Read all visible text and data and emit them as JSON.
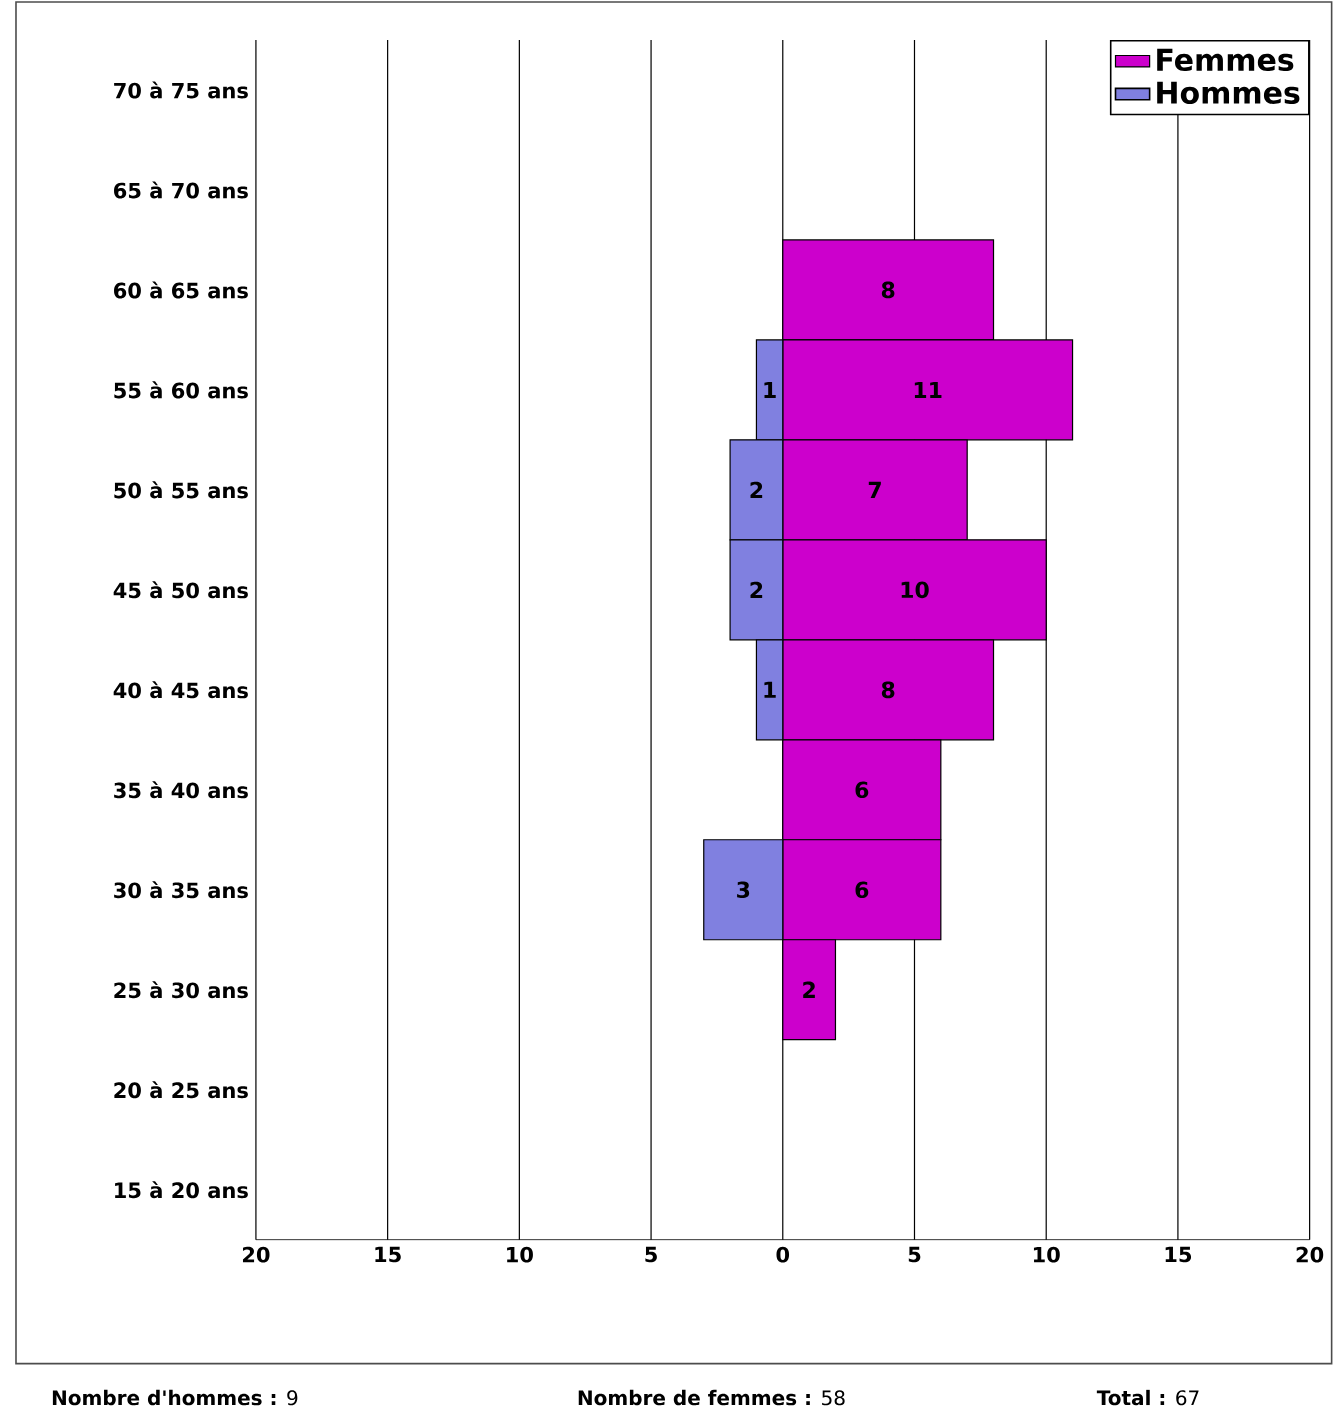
{
  "chart_data": {
    "type": "bar",
    "orientation": "horizontal",
    "categories": [
      "70 à 75 ans",
      "65 à 70 ans",
      "60 à 65 ans",
      "55 à 60 ans",
      "50 à 55 ans",
      "45 à 50 ans",
      "40 à 45 ans",
      "35 à 40 ans",
      "30 à 35 ans",
      "25 à 30 ans",
      "20 à 25 ans",
      "15 à 20 ans"
    ],
    "series": [
      {
        "name": "Femmes",
        "color": "#cc00cc",
        "values": [
          null,
          null,
          8,
          11,
          7,
          10,
          8,
          6,
          6,
          2,
          null,
          null
        ],
        "value_labels": [
          null,
          null,
          "8",
          "11",
          "7",
          "10",
          "8",
          "6",
          "6",
          "2",
          null,
          null
        ]
      },
      {
        "name": "Hommes",
        "color": "#8080e0",
        "values": [
          null,
          null,
          null,
          1,
          2,
          2,
          1,
          null,
          3,
          null,
          null,
          null
        ],
        "base": [
          null,
          null,
          null,
          -1,
          -2,
          -2,
          -1,
          null,
          -3,
          null,
          null,
          null
        ],
        "value_labels": [
          null,
          null,
          null,
          "1",
          "2",
          "2",
          "1",
          null,
          "3",
          null,
          null,
          null
        ]
      }
    ],
    "xlim": [
      -20,
      20
    ],
    "xticks": [
      {
        "value": -20,
        "label": "20"
      },
      {
        "value": -15,
        "label": "15"
      },
      {
        "value": -10,
        "label": "10"
      },
      {
        "value": -5,
        "label": "5"
      },
      0,
      5,
      10,
      15,
      20
    ],
    "grid": "x",
    "legend": "top right",
    "annotations": [
      "**Nombre d'hommes :** 9",
      "**Nombre de femmes :** 58",
      "**Total :** 67"
    ]
  }
}
